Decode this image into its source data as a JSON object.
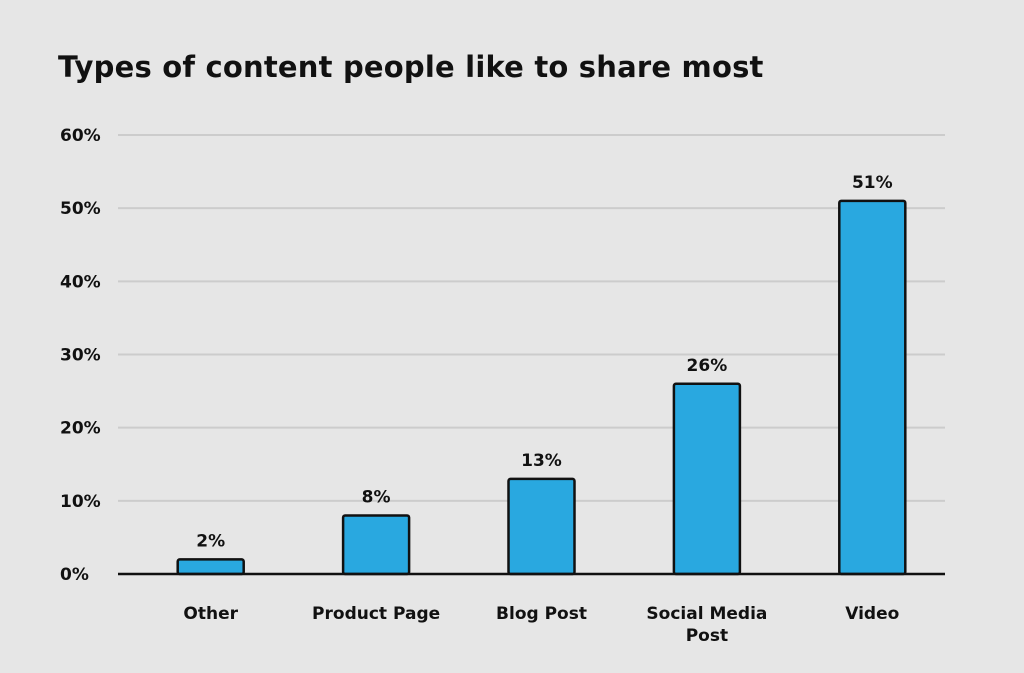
{
  "chart_data": {
    "type": "bar",
    "title": "Types of content people like to share most",
    "xlabel": "",
    "ylabel": "",
    "categories": [
      "Other",
      "Product Page",
      "Blog Post",
      "Social Media Post",
      "Video"
    ],
    "category_lines": [
      [
        "Other"
      ],
      [
        "Product Page"
      ],
      [
        "Blog Post"
      ],
      [
        "Social Media",
        "Post"
      ],
      [
        "Video"
      ]
    ],
    "values": [
      2,
      8,
      13,
      26,
      51
    ],
    "data_labels": [
      "2%",
      "8%",
      "13%",
      "26%",
      "51%"
    ],
    "ylim": [
      0,
      60
    ],
    "yticks": [
      0,
      10,
      20,
      30,
      40,
      50,
      60
    ],
    "ytick_labels": [
      "0%",
      "10%",
      "20%",
      "30%",
      "40%",
      "50%",
      "60%"
    ],
    "grid": true,
    "legend": "none",
    "bar_color": "#29a8e0",
    "bar_outline_color": "#111111",
    "grid_color": "#cccccc",
    "background_color": "#e6e6e6"
  }
}
